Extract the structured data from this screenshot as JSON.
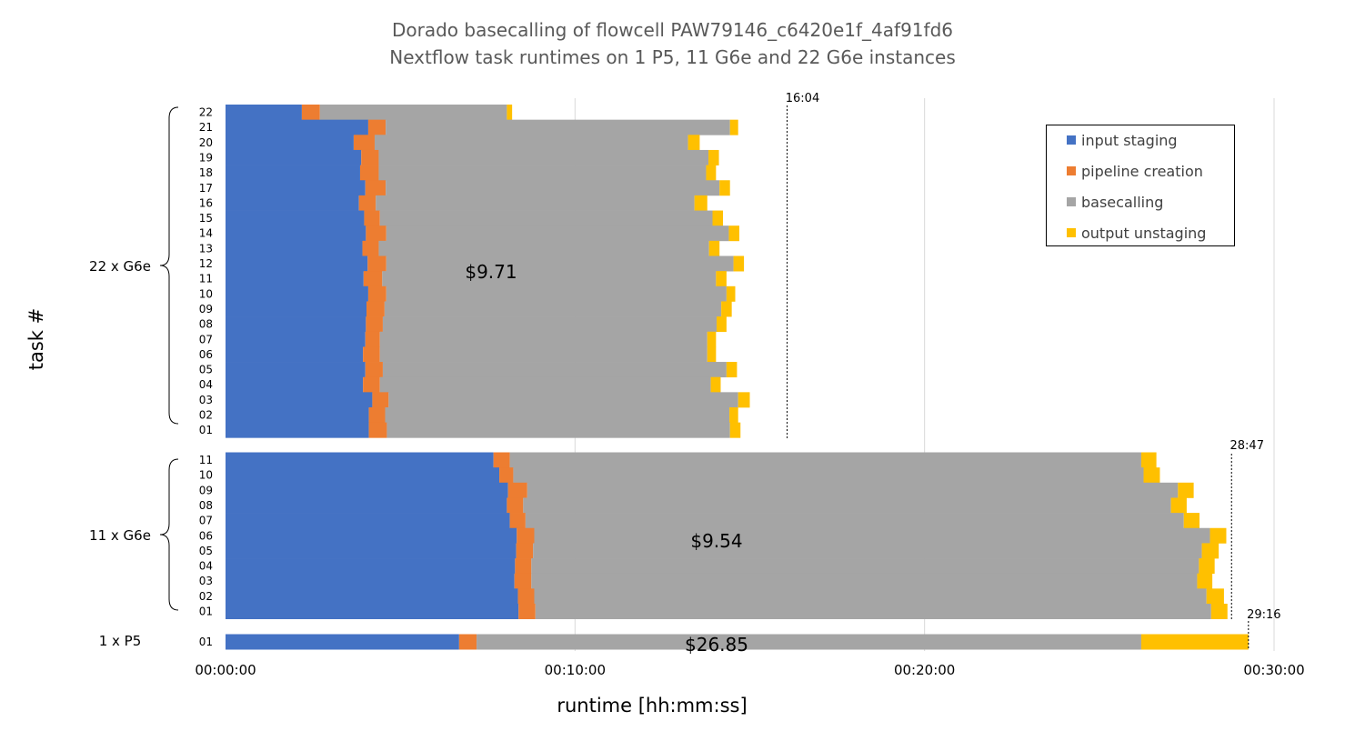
{
  "chart_data": {
    "type": "bar",
    "orientation": "horizontal",
    "stacked": true,
    "title": "Dorado basecalling of flowcell PAW79146_c6420e1f_4af91fd6",
    "subtitle": "Nextflow task runtimes on 1 P5, 11 G6e and 22 G6e instances",
    "xlabel": "runtime [hh:mm:ss]",
    "ylabel": "task #",
    "x_unit": "seconds",
    "xlim": [
      0,
      1800
    ],
    "x_ticks": [
      {
        "value": 0,
        "label": "00:00:00"
      },
      {
        "value": 600,
        "label": "00:10:00"
      },
      {
        "value": 1200,
        "label": "00:20:00"
      },
      {
        "value": 1800,
        "label": "00:30:00"
      }
    ],
    "grid": true,
    "legend_position": "top-right",
    "stages": [
      {
        "name": "input staging",
        "color": "#4472C4"
      },
      {
        "name": "pipeline creation",
        "color": "#ED7D31"
      },
      {
        "name": "basecalling",
        "color": "#A5A5A5"
      },
      {
        "name": "output unstaging",
        "color": "#FFC000"
      }
    ],
    "groups": [
      {
        "label": "22 x G6e",
        "cost": "$9.71",
        "makespan_label": "16:04",
        "makespan_seconds": 964,
        "tasks": [
          {
            "task": "22",
            "ends": [
              131,
              162,
              483,
              492
            ]
          },
          {
            "task": "21",
            "ends": [
              245,
              275,
              866,
              880
            ]
          },
          {
            "task": "20",
            "ends": [
              220,
              256,
              794,
              814
            ]
          },
          {
            "task": "19",
            "ends": [
              233,
              263,
              829,
              847
            ]
          },
          {
            "task": "18",
            "ends": [
              231,
              263,
              825,
              842
            ]
          },
          {
            "task": "17",
            "ends": [
              240,
              275,
              848,
              866
            ]
          },
          {
            "task": "16",
            "ends": [
              229,
              258,
              805,
              827
            ]
          },
          {
            "task": "15",
            "ends": [
              238,
              265,
              836,
              854
            ]
          },
          {
            "task": "14",
            "ends": [
              241,
              276,
              864,
              882
            ]
          },
          {
            "task": "13",
            "ends": [
              235,
              263,
              830,
              848
            ]
          },
          {
            "task": "12",
            "ends": [
              244,
              276,
              872,
              890
            ]
          },
          {
            "task": "11",
            "ends": [
              237,
              269,
              842,
              860
            ]
          },
          {
            "task": "10",
            "ends": [
              245,
              276,
              860,
              875
            ]
          },
          {
            "task": "09",
            "ends": [
              242,
              273,
              851,
              869
            ]
          },
          {
            "task": "08",
            "ends": [
              241,
              270,
              843,
              860
            ]
          },
          {
            "task": "07",
            "ends": [
              240,
              265,
              827,
              842
            ]
          },
          {
            "task": "06",
            "ends": [
              236,
              265,
              827,
              842
            ]
          },
          {
            "task": "05",
            "ends": [
              240,
              270,
              860,
              878
            ]
          },
          {
            "task": "04",
            "ends": [
              236,
              265,
              833,
              850
            ]
          },
          {
            "task": "03",
            "ends": [
              252,
              280,
              880,
              900
            ]
          },
          {
            "task": "02",
            "ends": [
              246,
              274,
              865,
              880
            ]
          },
          {
            "task": "01",
            "ends": [
              246,
              277,
              866,
              884
            ]
          }
        ]
      },
      {
        "label": "11 x G6e",
        "cost": "$9.54",
        "makespan_label": "28:47",
        "makespan_seconds": 1727,
        "tasks": [
          {
            "task": "11",
            "ends": [
              460,
              488,
              1572,
              1598
            ]
          },
          {
            "task": "10",
            "ends": [
              470,
              494,
              1576,
              1604
            ]
          },
          {
            "task": "09",
            "ends": [
              485,
              518,
              1635,
              1662
            ]
          },
          {
            "task": "08",
            "ends": [
              483,
              511,
              1623,
              1650
            ]
          },
          {
            "task": "07",
            "ends": [
              488,
              515,
              1645,
              1672
            ]
          },
          {
            "task": "06",
            "ends": [
              500,
              530,
              1690,
              1718
            ]
          },
          {
            "task": "05",
            "ends": [
              499,
              528,
              1676,
              1705
            ]
          },
          {
            "task": "04",
            "ends": [
              497,
              525,
              1671,
              1698
            ]
          },
          {
            "task": "03",
            "ends": [
              496,
              525,
              1668,
              1694
            ]
          },
          {
            "task": "02",
            "ends": [
              502,
              530,
              1684,
              1714
            ]
          },
          {
            "task": "01",
            "ends": [
              503,
              532,
              1692,
              1720
            ]
          }
        ]
      },
      {
        "label": "1 x P5",
        "cost": "$26.85",
        "makespan_label": "29:16",
        "makespan_seconds": 1756,
        "tasks": [
          {
            "task": "01",
            "ends": [
              401,
              431,
              1572,
              1756
            ]
          }
        ]
      }
    ]
  }
}
